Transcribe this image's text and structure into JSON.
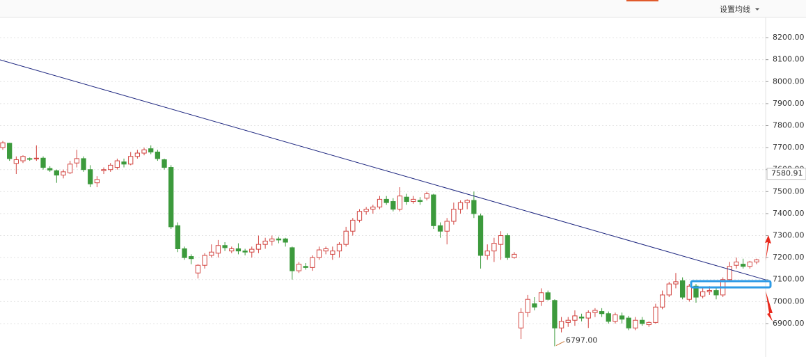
{
  "controls": {
    "ma_button": "设置均线"
  },
  "chart_data": {
    "type": "candlestick",
    "open": [
      7700,
      7720,
      7628,
      7640,
      7650,
      7650,
      7652,
      7605,
      7595,
      7575,
      7585,
      7630,
      7650,
      7600,
      7540,
      7595,
      7600,
      7610,
      7635,
      7625,
      7660,
      7675,
      7695,
      7680,
      7645,
      7610,
      7345,
      7240,
      7205,
      7130,
      7165,
      7210,
      7220,
      7255,
      7230,
      7240,
      7230,
      7225,
      7238,
      7260,
      7275,
      7285,
      7285,
      7245,
      7140,
      7160,
      7155,
      7200,
      7230,
      7215,
      7230,
      7260,
      7320,
      7370,
      7410,
      7420,
      7430,
      7465,
      7455,
      7420,
      7475,
      7455,
      7460,
      7470,
      7485,
      7345,
      7320,
      7365,
      7420,
      7450,
      7460,
      7390,
      7210,
      7230,
      7260,
      7300,
      7200,
      6880,
      6950,
      6990,
      7000,
      7040,
      7005,
      6880,
      6905,
      6915,
      6930,
      6925,
      6950,
      6955,
      6945,
      6910,
      6935,
      6925,
      6880,
      6915,
      6895,
      6905,
      6975,
      7030,
      7080,
      7095,
      7010,
      7070,
      7025,
      7045,
      7050,
      7030,
      7100,
      7165,
      7170,
      7160,
      7180
    ],
    "high": [
      7730,
      7722,
      7660,
      7665,
      7655,
      7710,
      7660,
      7615,
      7600,
      7600,
      7640,
      7690,
      7660,
      7620,
      7570,
      7610,
      7630,
      7650,
      7650,
      7680,
      7690,
      7700,
      7710,
      7690,
      7650,
      7620,
      7360,
      7250,
      7215,
      7170,
      7220,
      7260,
      7280,
      7270,
      7250,
      7265,
      7240,
      7250,
      7300,
      7290,
      7300,
      7295,
      7290,
      7250,
      7180,
      7175,
      7210,
      7250,
      7250,
      7250,
      7270,
      7340,
      7380,
      7420,
      7430,
      7440,
      7480,
      7480,
      7470,
      7520,
      7490,
      7480,
      7475,
      7500,
      7490,
      7360,
      7380,
      7450,
      7460,
      7465,
      7500,
      7400,
      7260,
      7290,
      7320,
      7310,
      7225,
      6970,
      7030,
      7020,
      7060,
      7050,
      7010,
      6930,
      6930,
      6960,
      6945,
      6960,
      6970,
      6970,
      6955,
      6950,
      6950,
      6935,
      6930,
      6930,
      6910,
      6990,
      7050,
      7090,
      7130,
      7110,
      7080,
      7080,
      7060,
      7070,
      7060,
      7110,
      7180,
      7200,
      7195,
      7185,
      7195
    ],
    "low": [
      7690,
      7640,
      7580,
      7630,
      7640,
      7640,
      7600,
      7590,
      7540,
      7560,
      7580,
      7610,
      7590,
      7520,
      7520,
      7580,
      7590,
      7600,
      7610,
      7620,
      7650,
      7665,
      7670,
      7640,
      7600,
      7330,
      7225,
      7190,
      7170,
      7105,
      7150,
      7200,
      7200,
      7230,
      7220,
      7215,
      7210,
      7200,
      7220,
      7240,
      7255,
      7265,
      7250,
      7100,
      7130,
      7145,
      7140,
      7190,
      7215,
      7190,
      7200,
      7250,
      7300,
      7360,
      7395,
      7400,
      7420,
      7440,
      7410,
      7410,
      7440,
      7445,
      7440,
      7460,
      7330,
      7290,
      7260,
      7350,
      7400,
      7420,
      7380,
      7150,
      7190,
      7180,
      7190,
      7190,
      7195,
      6830,
      6930,
      6960,
      6980,
      7005,
      6797,
      6860,
      6885,
      6890,
      6910,
      6880,
      6930,
      6930,
      6900,
      6900,
      6900,
      6870,
      6870,
      6890,
      6885,
      6900,
      6965,
      7020,
      7060,
      7010,
      7000,
      6995,
      7015,
      7030,
      7010,
      7020,
      7090,
      7150,
      7150,
      7150,
      7170
    ],
    "close": [
      7722,
      7650,
      7645,
      7660,
      7648,
      7652,
      7610,
      7598,
      7575,
      7590,
      7625,
      7650,
      7600,
      7535,
      7555,
      7600,
      7620,
      7640,
      7625,
      7660,
      7675,
      7690,
      7680,
      7650,
      7610,
      7340,
      7240,
      7200,
      7195,
      7165,
      7210,
      7225,
      7255,
      7245,
      7240,
      7230,
      7225,
      7238,
      7260,
      7275,
      7285,
      7280,
      7270,
      7140,
      7170,
      7155,
      7200,
      7235,
      7240,
      7230,
      7260,
      7320,
      7370,
      7410,
      7420,
      7430,
      7465,
      7450,
      7420,
      7480,
      7455,
      7465,
      7455,
      7490,
      7345,
      7320,
      7365,
      7420,
      7450,
      7460,
      7400,
      7210,
      7230,
      7265,
      7300,
      7200,
      7215,
      6950,
      7010,
      6975,
      7040,
      7010,
      6880,
      6910,
      6915,
      6935,
      6925,
      6950,
      6960,
      6945,
      6910,
      6940,
      6920,
      6880,
      6915,
      6900,
      6905,
      6975,
      7030,
      7080,
      7090,
      7020,
      7070,
      7020,
      7045,
      7050,
      7030,
      7100,
      7160,
      7180,
      7160,
      7180,
      7190
    ],
    "ylim": [
      6748,
      8292
    ],
    "yticks": [
      {
        "value": 6900,
        "label": "6900.00"
      },
      {
        "value": 7000,
        "label": "7000.00"
      },
      {
        "value": 7100,
        "label": "7100.00"
      },
      {
        "value": 7200,
        "label": "7200.00"
      },
      {
        "value": 7300,
        "label": "7300.00"
      },
      {
        "value": 7400,
        "label": "7400.00"
      },
      {
        "value": 7500,
        "label": "7500.00"
      },
      {
        "value": 7600,
        "label": "7600.00"
      },
      {
        "value": 7700,
        "label": "7700.00"
      },
      {
        "value": 7800,
        "label": "7800.00"
      },
      {
        "value": 7900,
        "label": "7900.00"
      },
      {
        "value": 8000,
        "label": "8000.00"
      },
      {
        "value": 8100,
        "label": "8100.00"
      },
      {
        "value": 8200,
        "label": "8200.00"
      }
    ],
    "last_price": 7580.91,
    "low_marker": {
      "value": 6797,
      "label": "6797.00"
    },
    "trendline": {
      "start": 8099,
      "end": 7099
    },
    "up_color": "#d2433f",
    "down_color": "#3c9a3c",
    "trend_color": "#1a237e",
    "grid": true
  }
}
